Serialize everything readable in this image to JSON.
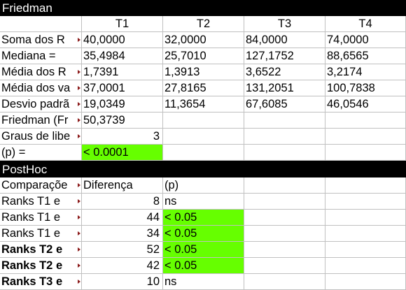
{
  "friedman": {
    "title": "Friedman",
    "columns": [
      "",
      "T1",
      "T2",
      "T3",
      "T4"
    ],
    "rows": [
      {
        "label": "Soma dos R",
        "values": [
          "40,0000",
          "32,0000",
          "84,0000",
          "74,0000"
        ]
      },
      {
        "label": "Mediana =",
        "values": [
          "35,4984",
          "25,7010",
          "127,1752",
          "88,6565"
        ]
      },
      {
        "label": "Média dos R",
        "values": [
          "1,7391",
          "1,3913",
          "3,6522",
          "3,2174"
        ]
      },
      {
        "label": "Média dos va",
        "values": [
          "37,0001",
          "27,8165",
          "131,2051",
          "100,7838"
        ]
      },
      {
        "label": "Desvio padrã",
        "values": [
          "19,0349",
          "11,3654",
          "67,6085",
          "46,0546"
        ]
      }
    ],
    "stat_label": "Friedman (Fr",
    "stat_value": "50,3739",
    "df_label": "Graus de libe",
    "df_value": "3",
    "p_label": "(p) =",
    "p_value": "< 0.0001",
    "highlight_color": "#66ff00"
  },
  "posthoc": {
    "title": "PostHoc",
    "header": {
      "comparison": "Comparaçõe",
      "difference": "Diferença",
      "p": "(p)"
    },
    "rows": [
      {
        "label": "Ranks  T1 e",
        "diff": "8",
        "p": "ns",
        "significant": false
      },
      {
        "label": "Ranks  T1 e",
        "diff": "44",
        "p": "< 0.05",
        "significant": true
      },
      {
        "label": "Ranks  T1 e",
        "diff": "34",
        "p": "< 0.05",
        "significant": true
      },
      {
        "label": "Ranks  T2 e",
        "diff": "52",
        "p": "< 0.05",
        "significant": true
      },
      {
        "label": "Ranks  T2 e",
        "diff": "42",
        "p": "< 0.05",
        "significant": true
      },
      {
        "label": "Ranks  T3 e",
        "diff": "10",
        "p": "ns",
        "significant": false
      }
    ]
  }
}
